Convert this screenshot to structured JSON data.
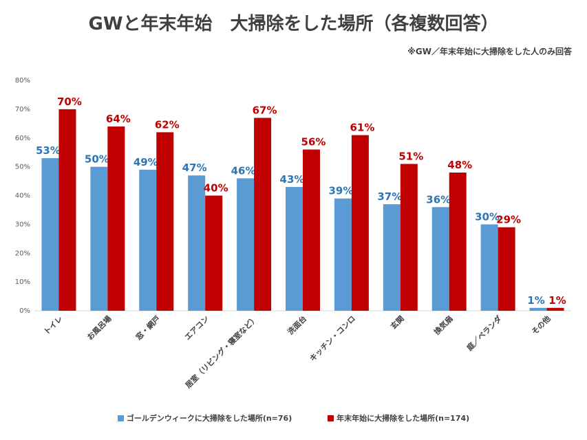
{
  "chart_data": {
    "type": "bar",
    "title": "GWと年末年始　大掃除をした場所（各複数回答）",
    "note": "※GW／年末年始に大掃除をした人のみ回答",
    "categories": [
      "トイレ",
      "お風呂場",
      "窓・網戸",
      "エアコン",
      "居室（リビング・寝室など）",
      "洗面台",
      "キッチン・コンロ",
      "玄関",
      "換気扇",
      "庭／ベランダ",
      "その他"
    ],
    "series": [
      {
        "name": "ゴールデンウィークに大掃除をした場所(n=76)",
        "color": "#5b9bd5",
        "values": [
          53,
          50,
          49,
          47,
          46,
          43,
          39,
          37,
          36,
          30,
          1
        ]
      },
      {
        "name": "年末年始に大掃除をした場所(n=174)",
        "color": "#c00000",
        "values": [
          70,
          64,
          62,
          40,
          67,
          56,
          61,
          51,
          48,
          29,
          1
        ]
      }
    ],
    "y_ticks": [
      "0%",
      "10%",
      "20%",
      "30%",
      "40%",
      "50%",
      "60%",
      "70%",
      "80%"
    ],
    "ylim": [
      0,
      80
    ],
    "grid": false,
    "legend_position": "bottom"
  }
}
